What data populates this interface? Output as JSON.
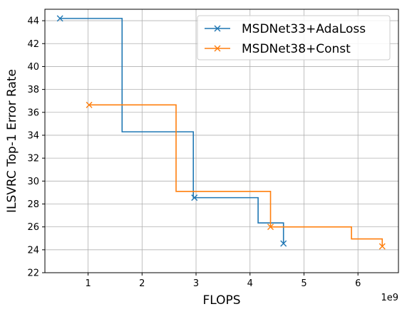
{
  "chart_data": {
    "type": "line",
    "xlabel": "FLOPS",
    "ylabel": "ILSVRC Top-1 Error Rate",
    "x_offset_text": "1e9",
    "xlim": [
      0.2,
      6.75
    ],
    "ylim": [
      22,
      45
    ],
    "x_ticks": [
      1,
      2,
      3,
      4,
      5,
      6
    ],
    "y_ticks": [
      22,
      24,
      26,
      28,
      30,
      32,
      34,
      36,
      38,
      40,
      42,
      44
    ],
    "grid": true,
    "legend_position": "top-right",
    "series": [
      {
        "name": "MSDNet33+AdaLoss",
        "color": "#1f77b4",
        "step_x": [
          0.48,
          1.63,
          1.63,
          2.95,
          2.95,
          4.15,
          4.15,
          4.62,
          4.62
        ],
        "step_y": [
          44.2,
          44.2,
          34.3,
          34.3,
          28.55,
          28.55,
          26.35,
          26.35,
          24.55
        ],
        "markers": [
          {
            "x": 0.48,
            "y": 44.2
          },
          {
            "x": 2.97,
            "y": 28.55
          },
          {
            "x": 4.62,
            "y": 24.55
          }
        ]
      },
      {
        "name": "MSDNet38+Const",
        "color": "#ff7f0e",
        "step_x": [
          1.02,
          2.63,
          2.63,
          4.38,
          4.38,
          5.88,
          5.88,
          6.45,
          6.45
        ],
        "step_y": [
          36.65,
          36.65,
          29.1,
          29.1,
          26.0,
          26.0,
          24.95,
          24.95,
          24.3
        ],
        "markers": [
          {
            "x": 1.02,
            "y": 36.65
          },
          {
            "x": 4.38,
            "y": 26.0
          },
          {
            "x": 6.45,
            "y": 24.3
          }
        ]
      }
    ]
  }
}
